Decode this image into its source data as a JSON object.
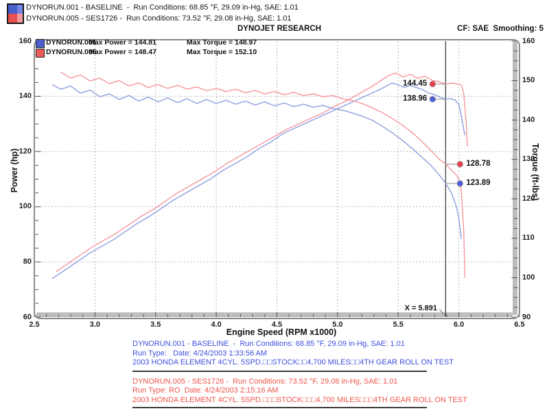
{
  "header": {
    "runs": [
      {
        "text": "DYNORUN.001 - BASELINE  -  Run Conditions: 68.85 °F, 29.09 in-Hg, SAE: 1.01"
      },
      {
        "text": "DYNORUN.005 - SES1726 -  Run Conditions: 73.52 °F, 29.08 in-Hg, SAE: 1.01"
      }
    ],
    "swatch_colors": {
      "blue_top": "#4a5fce",
      "blue_top_light": "#7487e2",
      "red_bottom": "#e8514f",
      "red_bottom_light": "#f59b9b"
    }
  },
  "titlebar": {
    "title": "DYNOJET RESEARCH",
    "right": "CF: SAE  Smoothing: 5"
  },
  "legend": {
    "rows": [
      {
        "name": "DYNORUN.001",
        "power": "Max Power = 144.81",
        "torque": "Max Torque = 148.97",
        "color": "#4a5fd0"
      },
      {
        "name": "DYNORUN.005",
        "power": "Max Power = 148.47",
        "torque": "Max Torque = 152.10",
        "color": "#ef5a5a"
      }
    ]
  },
  "footer": {
    "blue_color": "#3b4ede",
    "red_color": "#f0544a",
    "blue": [
      "DYNORUN.001 - BASELINE  -  Run Conditions: 68.85 °F, 29.09 in-Hg, SAE: 1.01",
      "Run Type:   Date: 4/24/2003 1:33:56 AM",
      "2003 HONDA ELEMENT 4CYL. 5SPD.□□STOCK□□4,700 MILES□□4TH GEAR ROLL ON TEST"
    ],
    "red": [
      "DYNORUN.005 - SES1726 -  Run Conditions: 73.52 °F, 29.08 in-Hg, SAE: 1.01",
      "Run Type: RO  Date: 4/24/2003 2:15:16 AM",
      "2003 HONDA ELEMENT 4CYL. 5SPD.□□□STOCK□□□4,700 MILES□□□4TH GEAR ROLL ON TEST"
    ]
  },
  "chart_data": {
    "type": "line",
    "x_axis": {
      "label": "Engine Speed (RPM x1000)",
      "min": 2.5,
      "max": 6.5,
      "minor_step": 0.1,
      "major_ticks": [
        2.5,
        3.0,
        3.5,
        4.0,
        4.5,
        5.0,
        5.5,
        6.0,
        6.5
      ],
      "tick_labels": [
        "2.5",
        "3.0",
        "3.5",
        "4.0",
        "4.5",
        "5.0",
        "5.5",
        "6.0",
        "6.5"
      ]
    },
    "y_left": {
      "label": "Power (hp)",
      "min": 60,
      "max": 160,
      "minor_step": 5,
      "major_ticks": [
        60,
        80,
        100,
        120,
        140,
        160
      ],
      "tick_labels": [
        "60",
        "80",
        "100",
        "120",
        "140",
        "160"
      ],
      "gridlines": [
        80,
        100,
        120,
        140
      ]
    },
    "y_right": {
      "label": "Torque (ft-lbs)",
      "min": 90,
      "max": 160,
      "minor_step": 2.5,
      "major_ticks": [
        90,
        100,
        110,
        120,
        130,
        140,
        150,
        160
      ],
      "tick_labels": [
        "90",
        "100",
        "110",
        "120",
        "130",
        "140",
        "150",
        "160"
      ]
    },
    "x_gridlines": [
      3.0,
      3.5,
      4.0,
      4.5,
      5.0,
      5.5,
      6.0
    ],
    "grid_on": true,
    "legend_position": "top-left",
    "cursor": {
      "x": 5.891,
      "label": "X = 5.891"
    },
    "markers": [
      {
        "label": "144.45",
        "axis": "power",
        "series": "DYNORUN.005",
        "rpm": 5.891,
        "value": 144.45,
        "color": "#e9404f",
        "side": "left"
      },
      {
        "label": "138.96",
        "axis": "power",
        "series": "DYNORUN.001",
        "rpm": 5.891,
        "value": 138.96,
        "color": "#4a5fd8",
        "side": "left"
      },
      {
        "label": "128.78",
        "axis": "torque",
        "series": "DYNORUN.005",
        "rpm": 5.891,
        "value": 128.78,
        "color": "#e9404f",
        "side": "right"
      },
      {
        "label": "123.89",
        "axis": "torque",
        "series": "DYNORUN.001",
        "rpm": 5.891,
        "value": 123.89,
        "color": "#4a5fd8",
        "side": "right"
      }
    ],
    "series": [
      {
        "name": "DYNORUN.001 Power",
        "axis": "power",
        "color": "#8d9edf",
        "max": 144.81,
        "points": [
          [
            2.65,
            74
          ],
          [
            2.75,
            77
          ],
          [
            2.85,
            80
          ],
          [
            2.95,
            83
          ],
          [
            3.05,
            85.5
          ],
          [
            3.15,
            88
          ],
          [
            3.25,
            91
          ],
          [
            3.35,
            94
          ],
          [
            3.45,
            96.5
          ],
          [
            3.55,
            99.5
          ],
          [
            3.65,
            102.5
          ],
          [
            3.75,
            105
          ],
          [
            3.85,
            107.5
          ],
          [
            3.95,
            110
          ],
          [
            4.05,
            113
          ],
          [
            4.15,
            115.5
          ],
          [
            4.25,
            118
          ],
          [
            4.35,
            121
          ],
          [
            4.45,
            123.5
          ],
          [
            4.55,
            126.5
          ],
          [
            4.65,
            128.5
          ],
          [
            4.75,
            130.5
          ],
          [
            4.85,
            132.5
          ],
          [
            4.95,
            134.5
          ],
          [
            5.05,
            136.5
          ],
          [
            5.15,
            138.5
          ],
          [
            5.25,
            140.5
          ],
          [
            5.35,
            142.5
          ],
          [
            5.45,
            144.8
          ],
          [
            5.5,
            144.2
          ],
          [
            5.55,
            143.2
          ],
          [
            5.6,
            143.9
          ],
          [
            5.65,
            143.2
          ],
          [
            5.7,
            142.4
          ],
          [
            5.75,
            141.2
          ],
          [
            5.8,
            140.6
          ],
          [
            5.85,
            139.6
          ],
          [
            5.891,
            138.96
          ],
          [
            5.93,
            139.2
          ],
          [
            5.97,
            138.6
          ],
          [
            6.0,
            137
          ],
          [
            6.02,
            133
          ],
          [
            6.04,
            128
          ],
          [
            6.05,
            126
          ]
        ]
      },
      {
        "name": "DYNORUN.005 Power",
        "axis": "power",
        "color": "#f4959c",
        "max": 148.47,
        "points": [
          [
            2.68,
            76.5
          ],
          [
            2.78,
            79.5
          ],
          [
            2.88,
            82.5
          ],
          [
            2.98,
            85.5
          ],
          [
            3.08,
            88
          ],
          [
            3.18,
            90.5
          ],
          [
            3.28,
            93.5
          ],
          [
            3.38,
            96.5
          ],
          [
            3.48,
            99
          ],
          [
            3.58,
            102
          ],
          [
            3.68,
            105
          ],
          [
            3.78,
            107.5
          ],
          [
            3.88,
            110
          ],
          [
            3.98,
            112.5
          ],
          [
            4.08,
            115.5
          ],
          [
            4.18,
            118
          ],
          [
            4.28,
            120.5
          ],
          [
            4.38,
            123
          ],
          [
            4.48,
            125.5
          ],
          [
            4.58,
            128
          ],
          [
            4.68,
            130
          ],
          [
            4.78,
            132
          ],
          [
            4.88,
            134
          ],
          [
            4.98,
            136.5
          ],
          [
            5.08,
            138.5
          ],
          [
            5.18,
            141
          ],
          [
            5.28,
            143.5
          ],
          [
            5.35,
            145.5
          ],
          [
            5.42,
            147.5
          ],
          [
            5.48,
            148.47
          ],
          [
            5.54,
            147
          ],
          [
            5.6,
            148
          ],
          [
            5.66,
            146.5
          ],
          [
            5.72,
            147.3
          ],
          [
            5.78,
            145.8
          ],
          [
            5.84,
            145.2
          ],
          [
            5.891,
            144.45
          ],
          [
            5.94,
            144.8
          ],
          [
            5.98,
            144.5
          ],
          [
            6.02,
            144.2
          ],
          [
            6.04,
            141
          ],
          [
            6.06,
            131
          ],
          [
            6.07,
            122
          ]
        ]
      },
      {
        "name": "DYNORUN.001 Torque",
        "axis": "torque",
        "color": "#8d9edf",
        "max": 148.97,
        "points": [
          [
            2.65,
            148.9
          ],
          [
            2.72,
            147.8
          ],
          [
            2.8,
            148.6
          ],
          [
            2.88,
            146.8
          ],
          [
            2.96,
            147.6
          ],
          [
            3.04,
            145.9
          ],
          [
            3.12,
            146.6
          ],
          [
            3.2,
            145.2
          ],
          [
            3.28,
            146.2
          ],
          [
            3.36,
            144.8
          ],
          [
            3.44,
            145.8
          ],
          [
            3.52,
            144.6
          ],
          [
            3.6,
            145.6
          ],
          [
            3.68,
            144.4
          ],
          [
            3.76,
            145.4
          ],
          [
            3.84,
            144.2
          ],
          [
            3.92,
            145.2
          ],
          [
            4.0,
            144.2
          ],
          [
            4.08,
            145
          ],
          [
            4.16,
            144
          ],
          [
            4.24,
            144.8
          ],
          [
            4.32,
            143.8
          ],
          [
            4.4,
            144.6
          ],
          [
            4.48,
            143.6
          ],
          [
            4.56,
            144.3
          ],
          [
            4.64,
            143.4
          ],
          [
            4.72,
            144
          ],
          [
            4.8,
            143.2
          ],
          [
            4.88,
            143.7
          ],
          [
            4.96,
            142.9
          ],
          [
            5.04,
            142.5
          ],
          [
            5.12,
            141.8
          ],
          [
            5.2,
            141
          ],
          [
            5.28,
            140
          ],
          [
            5.36,
            138.6
          ],
          [
            5.44,
            137
          ],
          [
            5.52,
            135.2
          ],
          [
            5.6,
            133.2
          ],
          [
            5.68,
            131
          ],
          [
            5.76,
            128.8
          ],
          [
            5.84,
            126
          ],
          [
            5.891,
            123.89
          ],
          [
            5.94,
            121.5
          ],
          [
            5.98,
            118
          ],
          [
            6.0,
            115
          ],
          [
            6.02,
            110
          ]
        ]
      },
      {
        "name": "DYNORUN.005 Torque",
        "axis": "torque",
        "color": "#f4959c",
        "max": 152.1,
        "points": [
          [
            2.72,
            152.1
          ],
          [
            2.8,
            150.6
          ],
          [
            2.88,
            151.4
          ],
          [
            2.96,
            149.9
          ],
          [
            3.04,
            150.6
          ],
          [
            3.12,
            149.2
          ],
          [
            3.2,
            150
          ],
          [
            3.28,
            148.6
          ],
          [
            3.36,
            149.4
          ],
          [
            3.44,
            148.2
          ],
          [
            3.52,
            149
          ],
          [
            3.6,
            148
          ],
          [
            3.68,
            148.8
          ],
          [
            3.76,
            147.8
          ],
          [
            3.84,
            148.4
          ],
          [
            3.92,
            147.4
          ],
          [
            4.0,
            148
          ],
          [
            4.08,
            147.2
          ],
          [
            4.16,
            147.8
          ],
          [
            4.24,
            146.9
          ],
          [
            4.32,
            147.5
          ],
          [
            4.4,
            146.6
          ],
          [
            4.48,
            147.2
          ],
          [
            4.56,
            146.4
          ],
          [
            4.64,
            147
          ],
          [
            4.72,
            146.2
          ],
          [
            4.8,
            146.6
          ],
          [
            4.88,
            145.9
          ],
          [
            4.96,
            146.2
          ],
          [
            5.04,
            145.4
          ],
          [
            5.12,
            144.9
          ],
          [
            5.2,
            144.2
          ],
          [
            5.28,
            143.2
          ],
          [
            5.36,
            142
          ],
          [
            5.44,
            140.6
          ],
          [
            5.52,
            139
          ],
          [
            5.6,
            137.2
          ],
          [
            5.68,
            135
          ],
          [
            5.76,
            132.6
          ],
          [
            5.84,
            130
          ],
          [
            5.891,
            128.78
          ],
          [
            5.94,
            127.2
          ],
          [
            5.98,
            126
          ],
          [
            6.0,
            125
          ],
          [
            6.02,
            122
          ],
          [
            6.04,
            112
          ],
          [
            6.05,
            100
          ]
        ]
      }
    ]
  }
}
